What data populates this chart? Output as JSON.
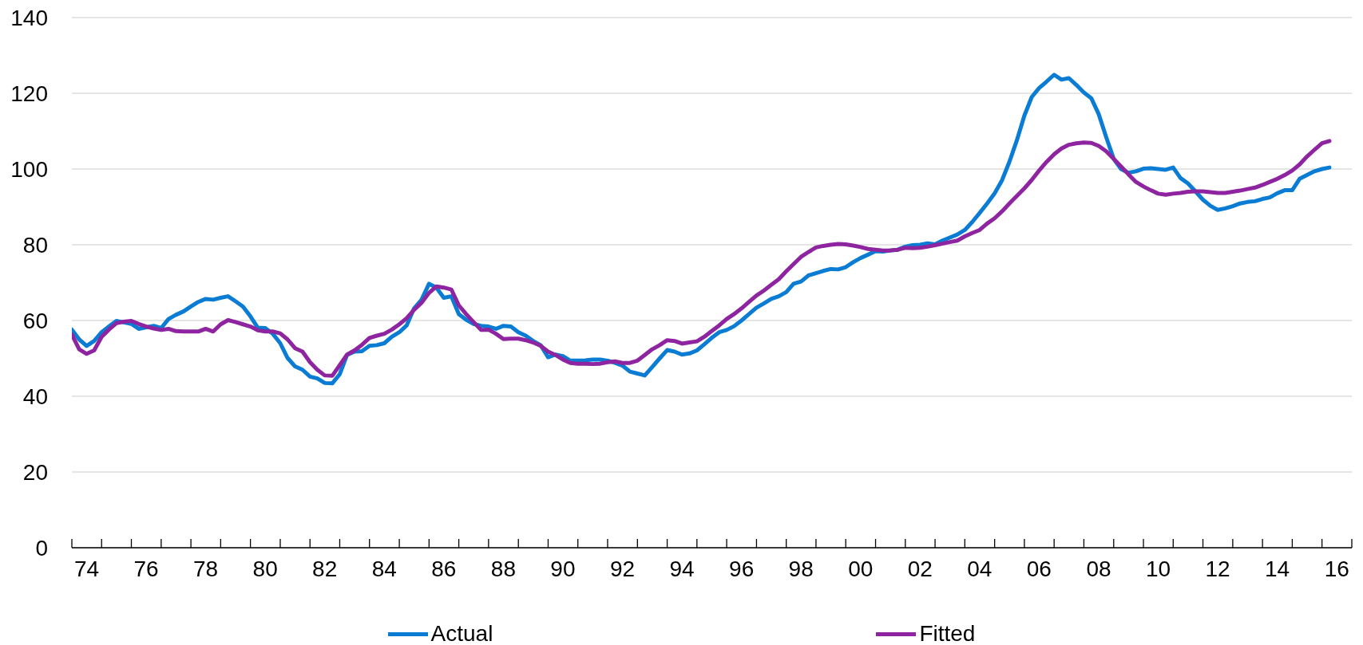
{
  "chart_data": {
    "type": "line",
    "x": [
      "1974-01",
      "1974-04",
      "1974-07",
      "1974-10",
      "1975-01",
      "1975-04",
      "1975-07",
      "1975-10",
      "1976-01",
      "1976-04",
      "1976-07",
      "1976-10",
      "1977-01",
      "1977-04",
      "1977-07",
      "1977-10",
      "1978-01",
      "1978-04",
      "1978-07",
      "1978-10",
      "1979-01",
      "1979-04",
      "1979-07",
      "1979-10",
      "1980-01",
      "1980-04",
      "1980-07",
      "1980-10",
      "1981-01",
      "1981-04",
      "1981-07",
      "1981-10",
      "1982-01",
      "1982-04",
      "1982-07",
      "1982-10",
      "1983-01",
      "1983-04",
      "1983-07",
      "1983-10",
      "1984-01",
      "1984-04",
      "1984-07",
      "1984-10",
      "1985-01",
      "1985-04",
      "1985-07",
      "1985-10",
      "1986-01",
      "1986-04",
      "1986-07",
      "1986-10",
      "1987-01",
      "1987-04",
      "1987-07",
      "1987-10",
      "1988-01",
      "1988-04",
      "1988-07",
      "1988-10",
      "1989-01",
      "1989-04",
      "1989-07",
      "1989-10",
      "1990-01",
      "1990-04",
      "1990-07",
      "1990-10",
      "1991-01",
      "1991-04",
      "1991-07",
      "1991-10",
      "1992-01",
      "1992-04",
      "1992-07",
      "1992-10",
      "1993-01",
      "1993-04",
      "1993-07",
      "1993-10",
      "1994-01",
      "1994-04",
      "1994-07",
      "1994-10",
      "1995-01",
      "1995-04",
      "1995-07",
      "1995-10",
      "1996-01",
      "1996-04",
      "1996-07",
      "1996-10",
      "1997-01",
      "1997-04",
      "1997-07",
      "1997-10",
      "1998-01",
      "1998-04",
      "1998-07",
      "1998-10",
      "1999-01",
      "1999-04",
      "1999-07",
      "1999-10",
      "2000-01",
      "2000-04",
      "2000-07",
      "2000-10",
      "2001-01",
      "2001-04",
      "2001-07",
      "2001-10",
      "2002-01",
      "2002-04",
      "2002-07",
      "2002-10",
      "2003-01",
      "2003-04",
      "2003-07",
      "2003-10",
      "2004-01",
      "2004-04",
      "2004-07",
      "2004-10",
      "2005-01",
      "2005-04",
      "2005-07",
      "2005-10",
      "2006-01",
      "2006-04",
      "2006-07",
      "2006-10",
      "2007-01",
      "2007-04",
      "2007-07",
      "2007-10",
      "2008-01",
      "2008-04",
      "2008-07",
      "2008-10",
      "2009-01",
      "2009-04",
      "2009-07",
      "2009-10",
      "2010-01",
      "2010-04",
      "2010-07",
      "2010-10",
      "2011-01",
      "2011-04",
      "2011-07",
      "2011-10",
      "2012-01",
      "2012-04",
      "2012-07",
      "2012-10",
      "2013-01",
      "2013-04",
      "2013-07",
      "2013-10",
      "2014-01",
      "2014-04",
      "2014-07",
      "2014-10",
      "2015-01",
      "2015-04",
      "2015-07",
      "2015-10",
      "2016-01",
      "2016-04"
    ],
    "series": [
      {
        "name": "Actual",
        "color": "#0a7cd4",
        "values": [
          57.6,
          55,
          53.3,
          54.6,
          56.9,
          58.4,
          59.9,
          59.5,
          59.1,
          57.8,
          58.2,
          58.6,
          58,
          60.4,
          61.5,
          62.4,
          63.7,
          64.9,
          65.7,
          65.5,
          66,
          66.4,
          65.1,
          63.7,
          61.1,
          58.1,
          58,
          56.5,
          54,
          50.1,
          47.9,
          47,
          45.2,
          44.7,
          43.5,
          43.4,
          45.8,
          50.9,
          51.8,
          51.9,
          53.3,
          53.5,
          54,
          55.7,
          56.9,
          58.7,
          63.2,
          65.5,
          69.7,
          68.7,
          66,
          66.4,
          61.7,
          60.2,
          59.1,
          58.6,
          58.4,
          57.8,
          58.6,
          58.4,
          56.9,
          56,
          54.6,
          53.5,
          50.3,
          51,
          50.6,
          49.4,
          49.4,
          49.5,
          49.7,
          49.7,
          49.4,
          48.8,
          48.1,
          46.5,
          46,
          45.5,
          47.7,
          50,
          52.2,
          51.8,
          51,
          51.3,
          52.1,
          53.7,
          55.4,
          56.9,
          57.5,
          58.5,
          60,
          61.7,
          63.4,
          64.5,
          65.7,
          66.4,
          67.5,
          69.7,
          70.3,
          71.9,
          72.5,
          73.1,
          73.6,
          73.5,
          74.1,
          75.4,
          76.5,
          77.4,
          78.3,
          78.2,
          78.5,
          78.7,
          79.5,
          79.9,
          80,
          80.4,
          80.1,
          81.1,
          81.9,
          82.7,
          83.9,
          86,
          88.4,
          90.9,
          93.6,
          97,
          101.9,
          107.6,
          114.1,
          119,
          121.4,
          123.1,
          124.9,
          123.6,
          124,
          122.2,
          120.2,
          118.7,
          114.5,
          108.4,
          102.7,
          100,
          99,
          99.4,
          100.1,
          100.2,
          100,
          99.8,
          100.4,
          97.6,
          96.2,
          94.1,
          91.9,
          90.3,
          89.2,
          89.6,
          90.2,
          90.9,
          91.3,
          91.5,
          92.1,
          92.5,
          93.6,
          94.4,
          94.4,
          97.4,
          98.4,
          99.4,
          100,
          100.4
        ]
      },
      {
        "name": "Fitted",
        "color": "#8e24a0",
        "values": [
          56.3,
          52.4,
          51.2,
          52.1,
          55.7,
          57.6,
          59.3,
          59.7,
          59.9,
          59.1,
          58.4,
          57.9,
          57.5,
          57.8,
          57.2,
          57.1,
          57.1,
          57.1,
          57.8,
          57.1,
          59,
          60.1,
          59.6,
          59,
          58.4,
          57.4,
          57.1,
          57.1,
          56.6,
          55,
          52.7,
          51.8,
          49,
          47,
          45.5,
          45.4,
          48.2,
          51,
          52.1,
          53.6,
          55.4,
          56,
          56.5,
          57.6,
          59,
          60.6,
          62.8,
          64.7,
          67.3,
          69,
          68.7,
          68.2,
          64,
          61.7,
          59.6,
          57.5,
          57.6,
          56.5,
          55.1,
          55.2,
          55.2,
          54.8,
          54.2,
          53.3,
          51.8,
          50.9,
          49.7,
          48.8,
          48.6,
          48.6,
          48.5,
          48.6,
          49,
          49.2,
          48.8,
          48.8,
          49.4,
          50.9,
          52.4,
          53.5,
          54.8,
          54.6,
          53.9,
          54.2,
          54.5,
          55.7,
          57.2,
          58.7,
          60.4,
          61.7,
          63.2,
          64.9,
          66.6,
          67.9,
          69.4,
          70.9,
          73,
          74.9,
          76.8,
          78.1,
          79.3,
          79.7,
          80,
          80.2,
          80.1,
          79.8,
          79.4,
          78.9,
          78.7,
          78.5,
          78.5,
          78.7,
          79.2,
          79.1,
          79.2,
          79.5,
          79.9,
          80.3,
          80.7,
          81.1,
          82.2,
          83.1,
          83.9,
          85.6,
          87,
          88.8,
          90.9,
          92.9,
          94.9,
          97.1,
          99.6,
          101.9,
          103.9,
          105.4,
          106.4,
          106.8,
          107,
          106.9,
          106.1,
          104.7,
          102.7,
          100.7,
          98.6,
          96.6,
          95.4,
          94.4,
          93.5,
          93.2,
          93.5,
          93.7,
          94,
          94.1,
          94.1,
          93.9,
          93.7,
          93.7,
          94,
          94.3,
          94.7,
          95.1,
          95.8,
          96.6,
          97.4,
          98.4,
          99.6,
          101.2,
          103.3,
          105.1,
          106.8,
          107.4
        ]
      }
    ],
    "xlim": [
      "1974-01",
      "2017-01"
    ],
    "xticks": [
      {
        "value": "1974-01",
        "label": null
      },
      {
        "value": "1974-07",
        "label": "74"
      },
      {
        "value": "1975-01",
        "label": null
      },
      {
        "value": "1976-01",
        "label": null
      },
      {
        "value": "1976-07",
        "label": "76"
      },
      {
        "value": "1977-01",
        "label": null
      },
      {
        "value": "1978-01",
        "label": null
      },
      {
        "value": "1978-07",
        "label": "78"
      },
      {
        "value": "1979-01",
        "label": null
      },
      {
        "value": "1980-01",
        "label": null
      },
      {
        "value": "1980-07",
        "label": "80"
      },
      {
        "value": "1981-01",
        "label": null
      },
      {
        "value": "1982-01",
        "label": null
      },
      {
        "value": "1982-07",
        "label": "82"
      },
      {
        "value": "1983-01",
        "label": null
      },
      {
        "value": "1984-01",
        "label": null
      },
      {
        "value": "1984-07",
        "label": "84"
      },
      {
        "value": "1985-01",
        "label": null
      },
      {
        "value": "1986-01",
        "label": null
      },
      {
        "value": "1986-07",
        "label": "86"
      },
      {
        "value": "1987-01",
        "label": null
      },
      {
        "value": "1988-01",
        "label": null
      },
      {
        "value": "1988-07",
        "label": "88"
      },
      {
        "value": "1989-01",
        "label": null
      },
      {
        "value": "1990-01",
        "label": null
      },
      {
        "value": "1990-07",
        "label": "90"
      },
      {
        "value": "1991-01",
        "label": null
      },
      {
        "value": "1992-01",
        "label": null
      },
      {
        "value": "1992-07",
        "label": "92"
      },
      {
        "value": "1993-01",
        "label": null
      },
      {
        "value": "1994-01",
        "label": null
      },
      {
        "value": "1994-07",
        "label": "94"
      },
      {
        "value": "1995-01",
        "label": null
      },
      {
        "value": "1996-01",
        "label": null
      },
      {
        "value": "1996-07",
        "label": "96"
      },
      {
        "value": "1997-01",
        "label": null
      },
      {
        "value": "1998-01",
        "label": null
      },
      {
        "value": "1998-07",
        "label": "98"
      },
      {
        "value": "1999-01",
        "label": null
      },
      {
        "value": "2000-01",
        "label": null
      },
      {
        "value": "2000-07",
        "label": "00"
      },
      {
        "value": "2001-01",
        "label": null
      },
      {
        "value": "2002-01",
        "label": null
      },
      {
        "value": "2002-07",
        "label": "02"
      },
      {
        "value": "2003-01",
        "label": null
      },
      {
        "value": "2004-01",
        "label": null
      },
      {
        "value": "2004-07",
        "label": "04"
      },
      {
        "value": "2005-01",
        "label": null
      },
      {
        "value": "2006-01",
        "label": null
      },
      {
        "value": "2006-07",
        "label": "06"
      },
      {
        "value": "2007-01",
        "label": null
      },
      {
        "value": "2008-01",
        "label": null
      },
      {
        "value": "2008-07",
        "label": "08"
      },
      {
        "value": "2009-01",
        "label": null
      },
      {
        "value": "2010-01",
        "label": null
      },
      {
        "value": "2010-07",
        "label": "10"
      },
      {
        "value": "2011-01",
        "label": null
      },
      {
        "value": "2012-01",
        "label": null
      },
      {
        "value": "2012-07",
        "label": "12"
      },
      {
        "value": "2013-01",
        "label": null
      },
      {
        "value": "2014-01",
        "label": null
      },
      {
        "value": "2014-07",
        "label": "14"
      },
      {
        "value": "2015-01",
        "label": null
      },
      {
        "value": "2016-01",
        "label": null
      },
      {
        "value": "2016-07",
        "label": "16"
      },
      {
        "value": "2017-01",
        "label": null
      }
    ],
    "ylim": [
      0,
      140
    ],
    "yticks": [
      0,
      20,
      40,
      60,
      80,
      100,
      120,
      140
    ],
    "grid": "y",
    "legend": "bottom"
  }
}
